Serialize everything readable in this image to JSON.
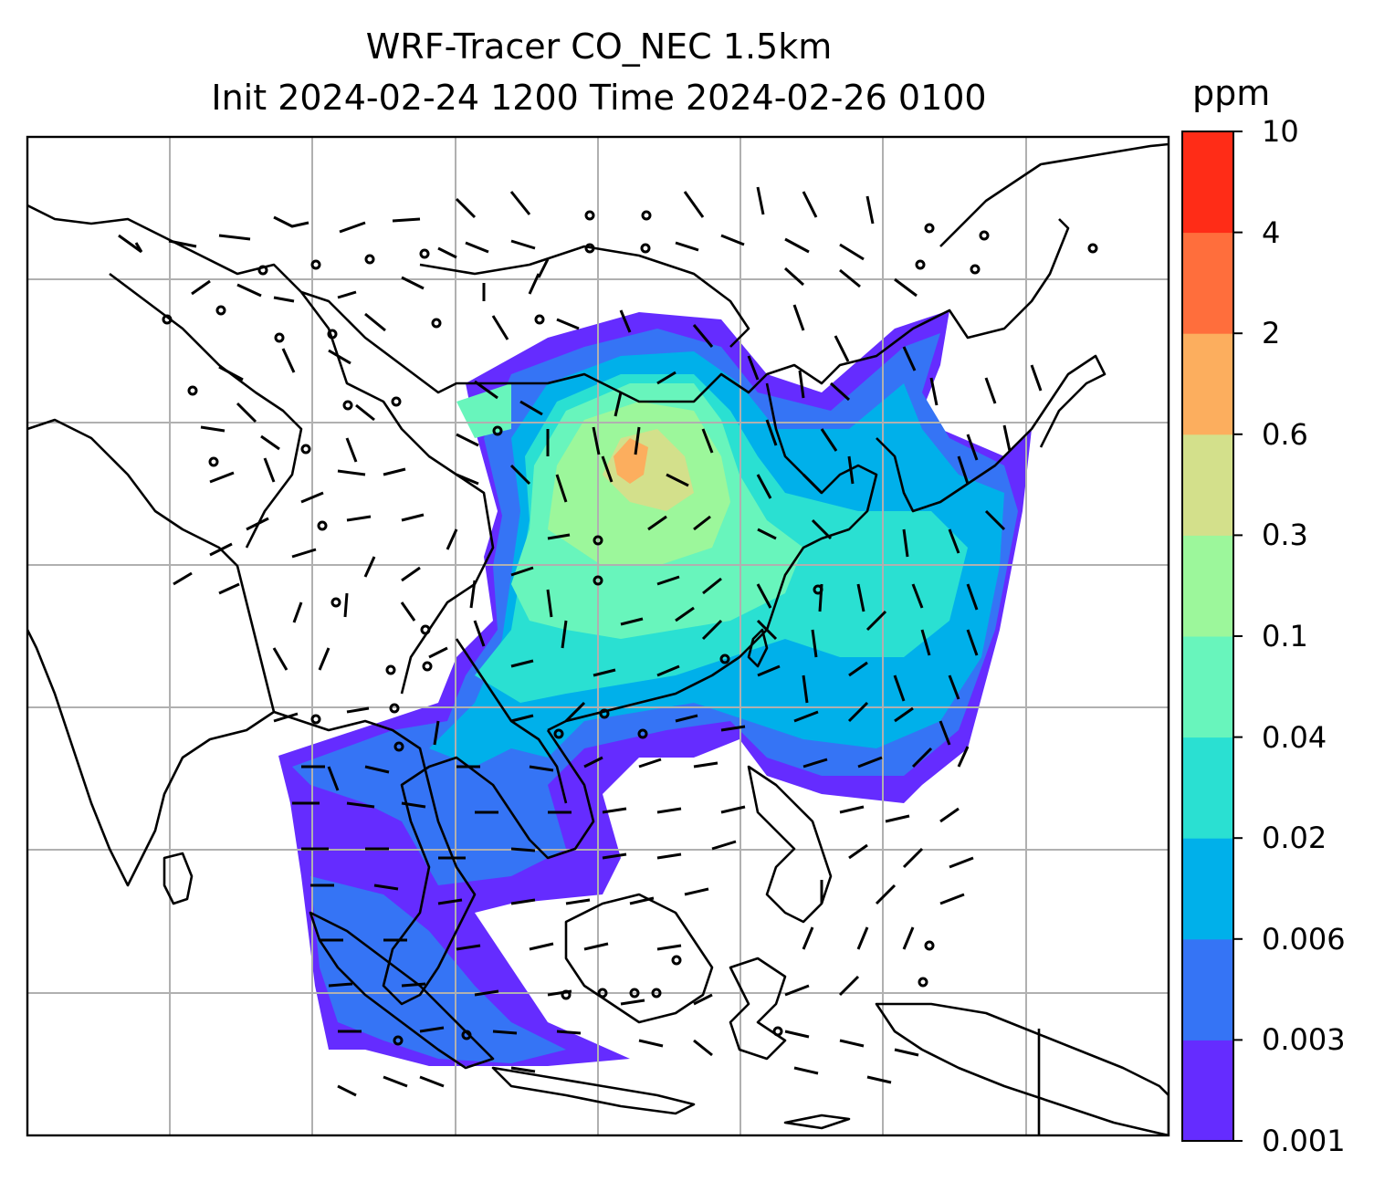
{
  "title": {
    "line1": "WRF-Tracer CO_NEC 1.5km",
    "line2": "Init 2024-02-24 1200 Time 2024-02-26 0100"
  },
  "colorbar": {
    "unit": "ppm",
    "levels": [
      "0.001",
      "0.003",
      "0.006",
      "0.02",
      "0.04",
      "0.1",
      "0.3",
      "0.6",
      "2",
      "4",
      "10"
    ],
    "colors": [
      "#652cff",
      "#3574f5",
      "#00b0ea",
      "#2ae0d2",
      "#68f5bc",
      "#9cf79b",
      "#d3e08b",
      "#fcae5e",
      "#ff6e3c",
      "#ff2c17"
    ]
  },
  "map": {
    "background": "#ffffff",
    "grid_color": "#b0b0b0",
    "coastline_color": "#000000"
  }
}
